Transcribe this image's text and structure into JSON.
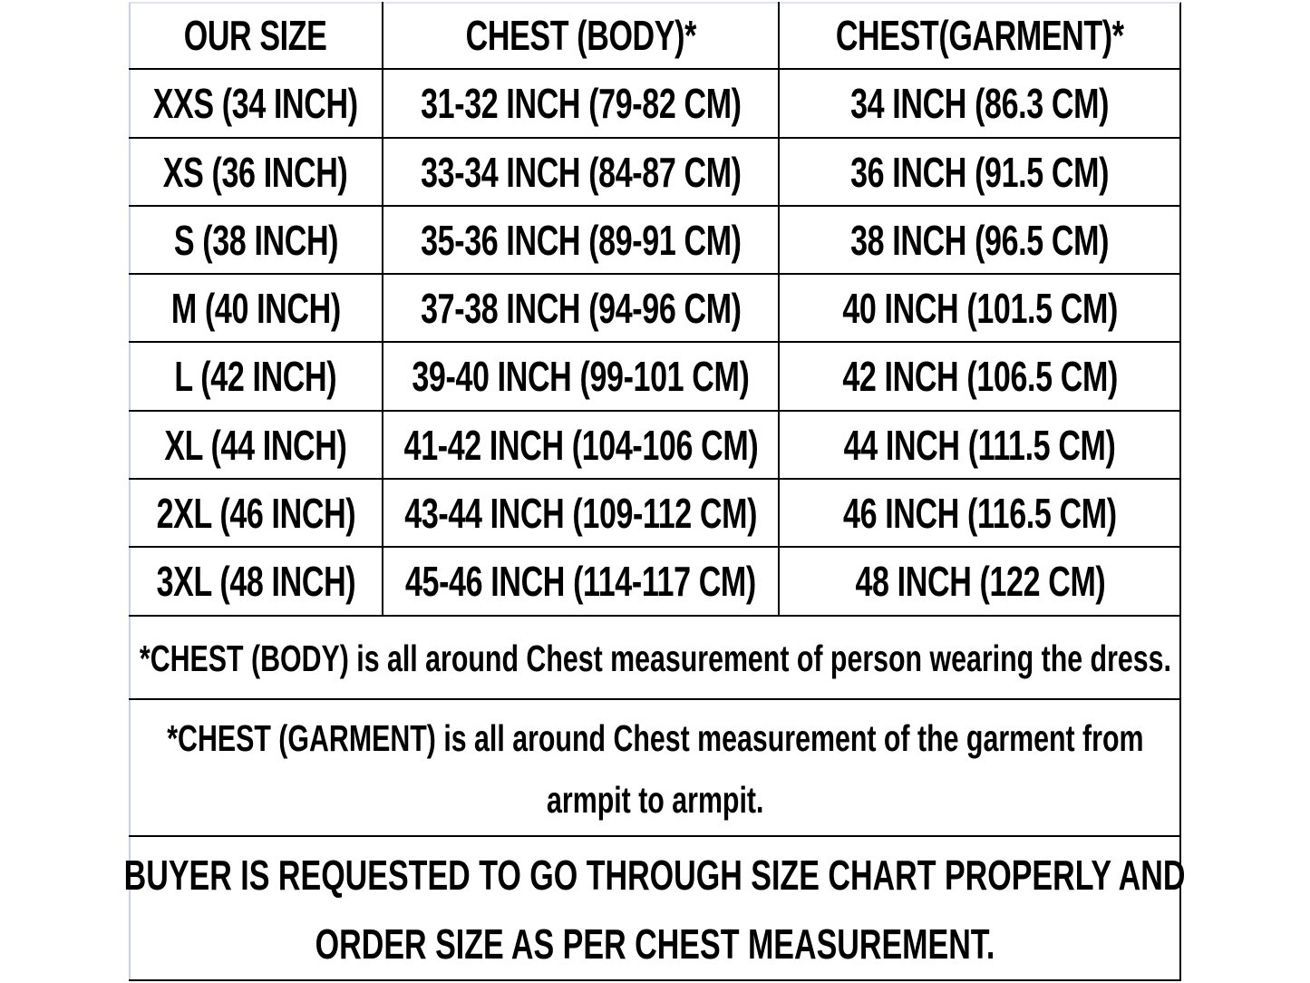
{
  "table": {
    "headers": [
      "OUR SIZE",
      "CHEST (BODY)*",
      "CHEST(GARMENT)*"
    ],
    "rows": [
      [
        "XXS (34 INCH)",
        "31-32 INCH (79-82 CM)",
        "34 INCH (86.3 CM)"
      ],
      [
        "XS (36 INCH)",
        "33-34 INCH (84-87 CM)",
        "36 INCH (91.5 CM)"
      ],
      [
        "S (38 INCH)",
        "35-36 INCH (89-91 CM)",
        "38 INCH (96.5 CM)"
      ],
      [
        "M (40 INCH)",
        "37-38 INCH (94-96 CM)",
        "40 INCH (101.5 CM)"
      ],
      [
        "L (42 INCH)",
        "39-40 INCH (99-101 CM)",
        "42 INCH (106.5 CM)"
      ],
      [
        "XL (44 INCH)",
        "41-42 INCH (104-106 CM)",
        "44 INCH (111.5 CM)"
      ],
      [
        "2XL (46 INCH)",
        "43-44 INCH (109-112 CM)",
        "46 INCH (116.5 CM)"
      ],
      [
        "3XL (48 INCH)",
        "45-46 INCH (114-117 CM)",
        "48 INCH (122 CM)"
      ]
    ]
  },
  "notes": {
    "body": "*CHEST (BODY) is all around Chest measurement of person wearing the dress.",
    "garment_line1": "*CHEST (GARMENT) is all around Chest measurement of the garment from",
    "garment_line2": "armpit to armpit.",
    "buyer_line1": "BUYER IS REQUESTED TO GO THROUGH SIZE CHART PROPERLY AND",
    "buyer_line2": "ORDER SIZE AS PER CHEST MEASUREMENT."
  }
}
